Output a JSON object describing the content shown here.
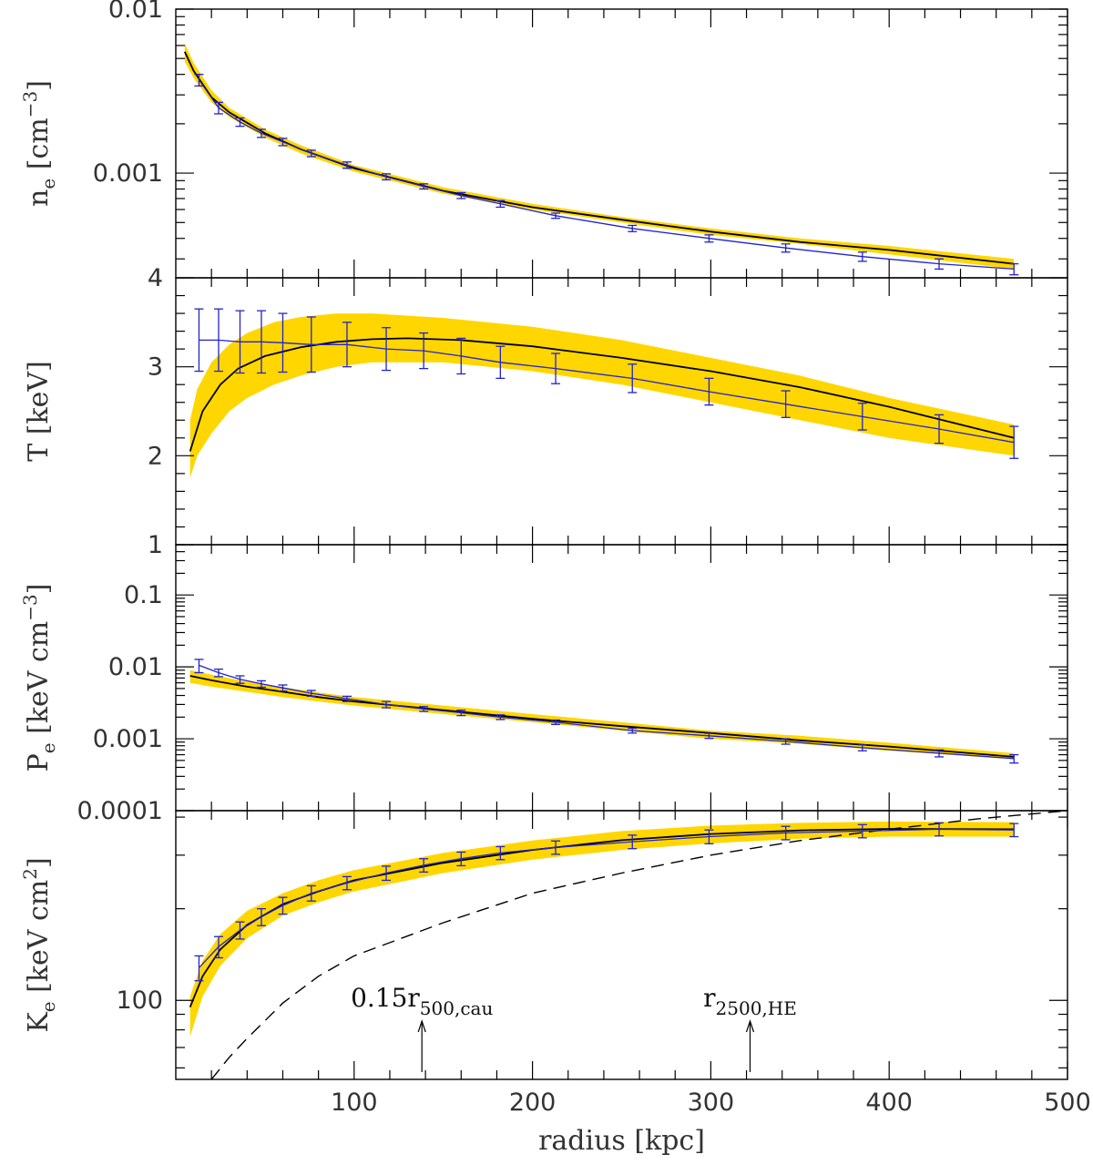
{
  "colors": {
    "band": "#ffd600",
    "model": "#000000",
    "data": "#2222cc",
    "frame": "#000000"
  },
  "chart_data": {
    "type": "line",
    "xlabel": "radius [kpc]",
    "xlim": [
      0,
      500
    ],
    "x_ticks": [
      100,
      200,
      300,
      400,
      500
    ],
    "x_tick_labels": [
      "100",
      "200",
      "300",
      "400",
      "500"
    ],
    "panels": [
      {
        "id": "ne",
        "ylabel": "n_e [cm^-3]",
        "ylabel_parts": {
          "main": "n",
          "sub": "e",
          "units": "[cm",
          "sup": "−3",
          "close": "]"
        },
        "yscale": "log",
        "ylim": [
          0.00023,
          0.01
        ],
        "tick_labels": [
          {
            "value": 0.01,
            "label": "0.01"
          },
          {
            "value": 0.001,
            "label": "0.001"
          }
        ],
        "band": {
          "x": [
            5,
            10,
            20,
            30,
            50,
            70,
            100,
            150,
            200,
            250,
            300,
            350,
            400,
            470
          ],
          "lower": [
            0.0048,
            0.0038,
            0.0027,
            0.0022,
            0.00165,
            0.00132,
            0.00102,
            0.00075,
            0.0006,
            0.0005,
            0.00042,
            0.00037,
            0.00032,
            0.00026
          ],
          "upper": [
            0.0062,
            0.0047,
            0.0032,
            0.0025,
            0.00185,
            0.00148,
            0.00112,
            0.00082,
            0.00065,
            0.00054,
            0.00046,
            0.0004,
            0.00036,
            0.0003
          ]
        },
        "model": {
          "x": [
            5,
            10,
            20,
            30,
            50,
            70,
            100,
            150,
            200,
            250,
            300,
            350,
            400,
            470
          ],
          "y": [
            0.0055,
            0.0042,
            0.0029,
            0.00235,
            0.00175,
            0.0014,
            0.00107,
            0.00078,
            0.00062,
            0.00052,
            0.00044,
            0.00038,
            0.00034,
            0.00028
          ]
        },
        "data": {
          "x": [
            13,
            24,
            36,
            48,
            60,
            76,
            96,
            118,
            139,
            160,
            182,
            213,
            256,
            299,
            342,
            385,
            428,
            470
          ],
          "y": [
            0.0037,
            0.0025,
            0.00205,
            0.00175,
            0.00155,
            0.00132,
            0.00112,
            0.00095,
            0.00083,
            0.00073,
            0.00065,
            0.00055,
            0.00046,
            0.0004,
            0.00035,
            0.00031,
            0.00028,
            0.00026
          ],
          "yerr": [
            0.0003,
            0.0002,
            0.00012,
            0.0001,
            8e-05,
            6e-05,
            5e-05,
            4e-05,
            3e-05,
            3e-05,
            3e-05,
            2e-05,
            2e-05,
            2e-05,
            2e-05,
            2e-05,
            2e-05,
            2e-05
          ]
        },
        "annotations": []
      },
      {
        "id": "T",
        "ylabel": "T [keV]",
        "ylabel_parts": {
          "main": "T",
          "sub": "",
          "units": "[keV]",
          "sup": "",
          "close": ""
        },
        "yscale": "linear",
        "ylim": [
          1,
          4
        ],
        "tick_labels": [
          {
            "value": 4,
            "label": "4"
          },
          {
            "value": 3,
            "label": "3"
          },
          {
            "value": 2,
            "label": "2"
          },
          {
            "value": 1,
            "label": "1"
          }
        ],
        "band": {
          "x": [
            8,
            12,
            20,
            30,
            40,
            55,
            70,
            90,
            110,
            150,
            200,
            250,
            300,
            350,
            400,
            470
          ],
          "lower": [
            1.75,
            2.0,
            2.25,
            2.5,
            2.65,
            2.8,
            2.9,
            3.0,
            3.05,
            3.05,
            2.95,
            2.8,
            2.6,
            2.4,
            2.2,
            2.0
          ],
          "upper": [
            2.4,
            2.75,
            3.05,
            3.25,
            3.38,
            3.5,
            3.56,
            3.6,
            3.6,
            3.55,
            3.45,
            3.3,
            3.1,
            2.9,
            2.65,
            2.35
          ]
        },
        "model": {
          "x": [
            8,
            15,
            25,
            35,
            50,
            70,
            90,
            110,
            130,
            160,
            200,
            250,
            300,
            350,
            400,
            470
          ],
          "y": [
            2.05,
            2.5,
            2.8,
            2.98,
            3.12,
            3.22,
            3.28,
            3.31,
            3.32,
            3.3,
            3.23,
            3.1,
            2.95,
            2.77,
            2.55,
            2.2
          ]
        },
        "data": {
          "x": [
            13,
            24,
            36,
            48,
            60,
            76,
            96,
            118,
            139,
            160,
            182,
            213,
            256,
            299,
            342,
            385,
            428,
            470
          ],
          "y": [
            3.3,
            3.3,
            3.28,
            3.28,
            3.27,
            3.25,
            3.25,
            3.2,
            3.18,
            3.12,
            3.05,
            2.98,
            2.87,
            2.72,
            2.58,
            2.44,
            2.3,
            2.15
          ],
          "yerr": [
            0.35,
            0.35,
            0.35,
            0.35,
            0.33,
            0.31,
            0.25,
            0.24,
            0.2,
            0.2,
            0.18,
            0.17,
            0.16,
            0.15,
            0.15,
            0.15,
            0.16,
            0.18
          ]
        },
        "annotations": []
      },
      {
        "id": "Pe",
        "ylabel": "P_e [keV cm^-3]",
        "ylabel_parts": {
          "main": "P",
          "sub": "e",
          "units": "[keV cm",
          "sup": "−3",
          "close": "]"
        },
        "yscale": "log",
        "ylim": [
          0.0001,
          0.5
        ],
        "tick_labels": [
          {
            "value": 0.1,
            "label": "0.1"
          },
          {
            "value": 0.01,
            "label": "0.01"
          },
          {
            "value": 0.001,
            "label": "0.001"
          },
          {
            "value": 0.0001,
            "label": "0.0001"
          }
        ],
        "band": {
          "x": [
            8,
            20,
            40,
            60,
            80,
            100,
            150,
            200,
            250,
            300,
            350,
            400,
            470
          ],
          "lower": [
            0.006,
            0.0053,
            0.0045,
            0.0038,
            0.0033,
            0.0029,
            0.0022,
            0.0017,
            0.0013,
            0.001,
            0.00085,
            0.00068,
            0.00052
          ],
          "upper": [
            0.009,
            0.0078,
            0.0062,
            0.0052,
            0.0044,
            0.0038,
            0.0029,
            0.0022,
            0.0017,
            0.0013,
            0.0011,
            0.00088,
            0.00063
          ]
        },
        "model": {
          "x": [
            8,
            20,
            40,
            60,
            80,
            100,
            150,
            200,
            250,
            300,
            350,
            400,
            470
          ],
          "y": [
            0.0075,
            0.0065,
            0.0053,
            0.0045,
            0.0038,
            0.0033,
            0.0025,
            0.0019,
            0.0015,
            0.0012,
            0.00095,
            0.00078,
            0.00056
          ]
        },
        "data": {
          "x": [
            13,
            24,
            36,
            48,
            60,
            76,
            96,
            118,
            139,
            160,
            182,
            213,
            256,
            299,
            342,
            385,
            428,
            470
          ],
          "y": [
            0.0105,
            0.0083,
            0.0067,
            0.0058,
            0.0051,
            0.0043,
            0.0036,
            0.003,
            0.0026,
            0.0023,
            0.002,
            0.0017,
            0.0013,
            0.0011,
            0.00092,
            0.00075,
            0.00063,
            0.00053
          ],
          "yerr": [
            0.0022,
            0.001,
            0.0008,
            0.0006,
            0.0005,
            0.0004,
            0.0003,
            0.0003,
            0.0002,
            0.0002,
            0.00015,
            0.00012,
            0.0001,
            9e-05,
            8e-05,
            7e-05,
            7e-05,
            7e-05
          ]
        },
        "annotations": []
      },
      {
        "id": "Ke",
        "ylabel": "K_e [keV cm^2]",
        "ylabel_parts": {
          "main": "K",
          "sub": "e",
          "units": "[keV cm",
          "sup": "2",
          "close": "]"
        },
        "yscale": "log",
        "ylim": [
          55,
          420
        ],
        "tick_labels": [
          {
            "value": 100,
            "label": "100"
          }
        ],
        "band": {
          "x": [
            8,
            15,
            25,
            40,
            60,
            80,
            100,
            150,
            200,
            250,
            300,
            350,
            400,
            470
          ],
          "lower": [
            76,
            103,
            130,
            160,
            190,
            210,
            228,
            262,
            290,
            312,
            328,
            340,
            345,
            345
          ],
          "upper": [
            103,
            135,
            165,
            197,
            225,
            248,
            268,
            305,
            335,
            360,
            375,
            383,
            387,
            385
          ]
        },
        "model": {
          "x": [
            8,
            15,
            25,
            40,
            60,
            80,
            100,
            150,
            200,
            250,
            300,
            350,
            400,
            470
          ],
          "y": [
            95,
            120,
            147,
            177,
            207,
            228,
            248,
            283,
            312,
            336,
            352,
            362,
            366,
            365
          ]
        },
        "data": {
          "x": [
            13,
            24,
            36,
            48,
            60,
            76,
            96,
            118,
            139,
            160,
            182,
            213,
            256,
            299,
            342,
            385,
            428,
            470
          ],
          "y": [
            128,
            150,
            170,
            188,
            205,
            225,
            243,
            262,
            278,
            292,
            305,
            318,
            332,
            345,
            355,
            360,
            365,
            363
          ],
          "yerr": [
            12,
            12,
            11,
            12,
            13,
            13,
            12,
            14,
            14,
            15,
            15,
            16,
            17,
            18,
            18,
            18,
            18,
            18
          ]
        },
        "reference": {
          "x": [
            20,
            30,
            40,
            60,
            80,
            100,
            150,
            200,
            250,
            300,
            350,
            400,
            450,
            500
          ],
          "y": [
            55,
            65,
            75,
            98,
            120,
            140,
            180,
            225,
            262,
            300,
            335,
            365,
            395,
            420
          ]
        },
        "annotations": [
          {
            "x": 138,
            "text": "0.15r",
            "sub": "500,cau"
          },
          {
            "x": 322,
            "text": "r",
            "sub": "2500,HE"
          }
        ]
      }
    ]
  }
}
